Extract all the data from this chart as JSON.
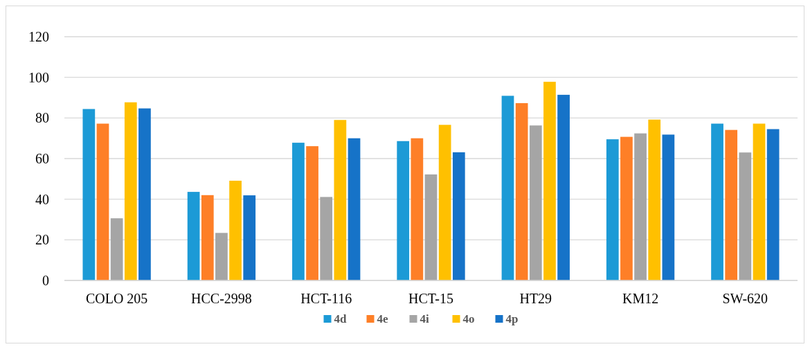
{
  "chart_data": {
    "type": "bar",
    "categories": [
      "COLO 205",
      "HCC-2998",
      "HCT-116",
      "HCT-15",
      "HT29",
      "KM12",
      "SW-620"
    ],
    "series": [
      {
        "name": "4d",
        "color": "#1c9ad6",
        "values": [
          84.4,
          43.6,
          67.8,
          68.6,
          90.9,
          69.5,
          77.2
        ]
      },
      {
        "name": "4e",
        "color": "#fe7f27",
        "values": [
          77.2,
          42.0,
          66.1,
          70.0,
          87.3,
          70.7,
          74.1
        ]
      },
      {
        "name": "4i",
        "color": "#a5a5a5",
        "values": [
          30.6,
          23.4,
          41.1,
          52.2,
          76.3,
          72.4,
          63.0
        ]
      },
      {
        "name": "4o",
        "color": "#ffc000",
        "values": [
          87.7,
          49.1,
          79.0,
          76.6,
          97.8,
          79.2,
          77.2
        ]
      },
      {
        "name": "4p",
        "color": "#1673c8",
        "values": [
          84.7,
          41.9,
          70.0,
          63.1,
          91.4,
          71.8,
          74.5
        ]
      }
    ],
    "ylim": [
      0,
      120
    ],
    "yticks": [
      0,
      20,
      40,
      60,
      80,
      100,
      120
    ],
    "grid": "y",
    "legend": "bottom"
  }
}
